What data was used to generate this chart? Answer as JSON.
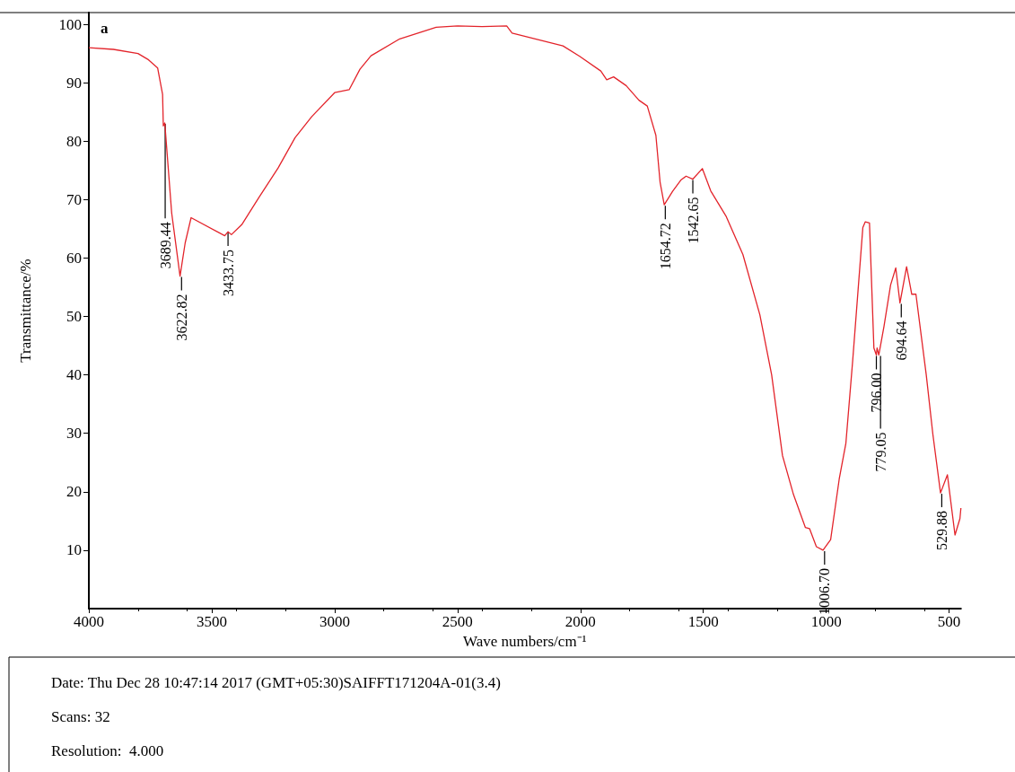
{
  "chart_data": {
    "type": "line",
    "title": "a",
    "xlabel": "Wave numbers/cm⁻¹",
    "ylabel": "Transmittance/%",
    "x": [
      4000,
      3900,
      3800,
      3760,
      3720,
      3700,
      3697,
      3691,
      3663,
      3629,
      3608,
      3584,
      3447,
      3433.75,
      3420,
      3378,
      3309,
      3230,
      3161,
      3093,
      3000,
      2941,
      2897,
      2852,
      2735,
      2587,
      2500,
      2400,
      2300,
      2278,
      2071,
      2003,
      1917,
      1893,
      1865,
      1814,
      1762,
      1728,
      1693,
      1676,
      1659,
      1625,
      1590,
      1570,
      1542.65,
      1504,
      1470,
      1408,
      1339,
      1270,
      1222,
      1178,
      1133,
      1085,
      1068,
      1040,
      1013,
      982,
      947,
      920,
      892,
      851,
      841,
      824,
      806,
      796,
      793,
      786,
      765,
      738,
      717,
      700,
      673,
      652,
      635,
      593,
      566,
      535,
      507,
      476,
      456,
      452
    ],
    "series": [
      {
        "color": "#e3242b",
        "values": [
          96,
          95.7,
          95,
          94,
          92.5,
          88,
          82.6,
          83.1,
          67.7,
          56.9,
          62.6,
          66.9,
          63.8,
          64.5,
          64,
          65.7,
          70.3,
          75.4,
          80.6,
          84.2,
          88.3,
          88.8,
          92.3,
          94.6,
          97.5,
          99.5,
          99.7,
          99.6,
          99.7,
          98.5,
          96.3,
          94.5,
          92,
          90.5,
          91,
          89.5,
          87,
          86,
          81,
          73,
          69.1,
          71.4,
          73.4,
          74,
          73.5,
          75.3,
          71.5,
          67.2,
          60.6,
          50.3,
          40,
          26.2,
          19.5,
          13.9,
          13.7,
          10.6,
          10,
          11.8,
          22.2,
          28.3,
          42.6,
          65.2,
          66.2,
          66,
          44.6,
          43.4,
          44.6,
          43.4,
          48.3,
          55.4,
          58.3,
          52.3,
          58.5,
          53.8,
          53.8,
          40,
          29.8,
          19.8,
          22.9,
          12.6,
          15.4,
          17.2
        ]
      }
    ],
    "xlim": [
      4000,
      452
    ],
    "xticks": [
      4000,
      3500,
      3000,
      2500,
      2000,
      1500,
      1000,
      500
    ],
    "ylim": [
      0,
      102
    ],
    "yticks": [
      10,
      20,
      30,
      40,
      50,
      60,
      70,
      80,
      90,
      100
    ],
    "grid": false,
    "marker": "none",
    "line_style": "solid",
    "annotations": [
      {
        "text": "3689.44",
        "x": 3689.44,
        "y": 83.1
      },
      {
        "text": "3622.82",
        "x": 3622.82,
        "y": 56.9
      },
      {
        "text": "3433.75",
        "x": 3433.75,
        "y": 64.5
      },
      {
        "text": "1654.72",
        "x": 1654.72,
        "y": 69.1
      },
      {
        "text": "1542.65",
        "x": 1542.65,
        "y": 73.5
      },
      {
        "text": "1006.70",
        "x": 1006.7,
        "y": 10
      },
      {
        "text": "796.00",
        "x": 796,
        "y": 43.4
      },
      {
        "text": "779.05",
        "x": 779.05,
        "y": 43.4
      },
      {
        "text": "694.64",
        "x": 694.64,
        "y": 52.3
      },
      {
        "text": "529.88",
        "x": 529.88,
        "y": 19.8
      },
      "Date: Thu Dec 28 10:47:14 2017 (GMT+05:30)SAIFFT171204A-01(3.4)",
      "Scans: 32",
      "Resolution:  4.000"
    ]
  }
}
